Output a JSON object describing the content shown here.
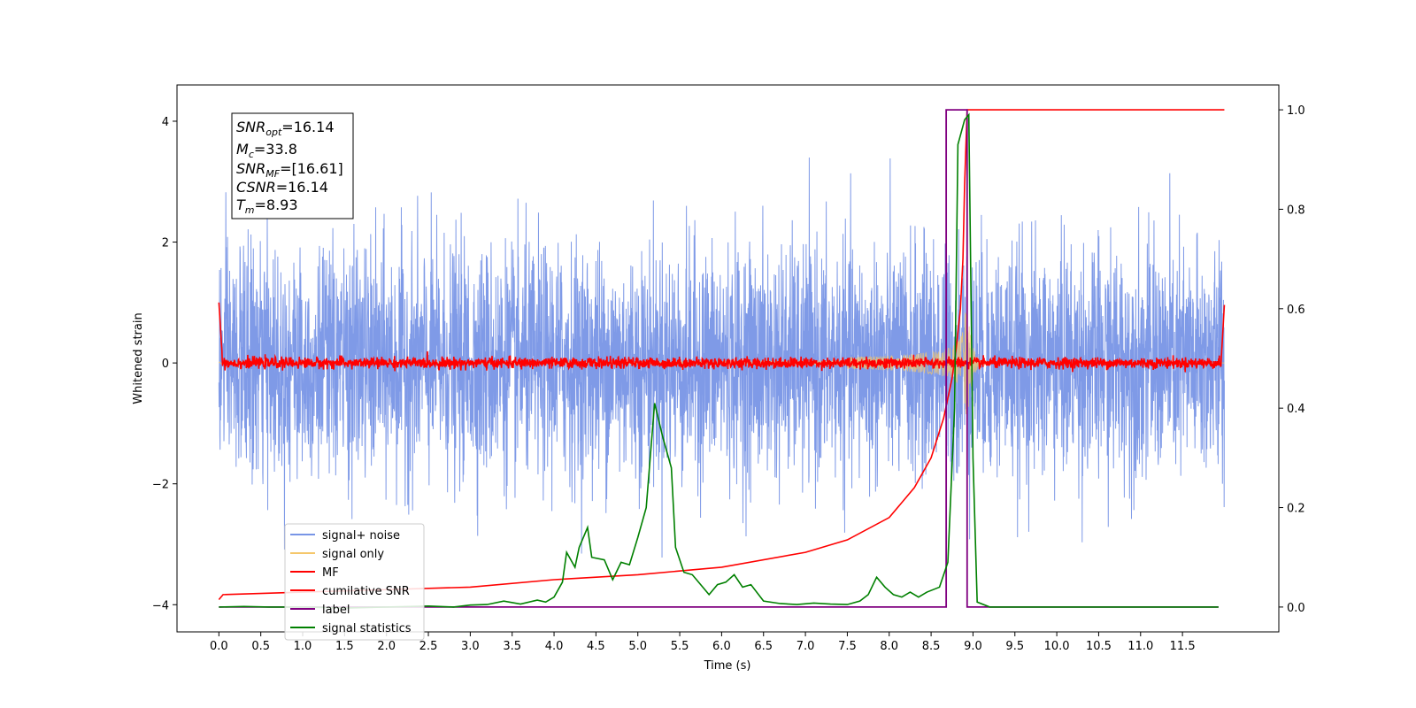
{
  "chart_data": {
    "type": "line",
    "xlabel": "Time (s)",
    "ylabel": "Whitened strain",
    "xlim": [
      -0.5,
      12.65
    ],
    "ylim_left": [
      -4.45,
      4.6
    ],
    "ylim_right": [
      -0.05,
      1.05
    ],
    "x_ticks": [
      "0.0",
      "0.5",
      "1.0",
      "1.5",
      "2.0",
      "2.5",
      "3.0",
      "3.5",
      "4.0",
      "4.5",
      "5.0",
      "5.5",
      "6.0",
      "6.5",
      "7.0",
      "7.5",
      "8.0",
      "8.5",
      "9.0",
      "9.5",
      "10.0",
      "10.5",
      "11.0",
      "11.5"
    ],
    "y_ticks_left": [
      "4",
      "2",
      "0",
      "−2",
      "−4"
    ],
    "y_ticks_right": [
      "1.0",
      "0.8",
      "0.6",
      "0.4",
      "0.2",
      "0.0"
    ],
    "info_box": {
      "snr_opt": {
        "base": "SNR",
        "sub": "opt",
        "value": "=16.14"
      },
      "mc": {
        "base": "M",
        "sub": "c",
        "value": "=33.8"
      },
      "snr_mf": {
        "base": "SNR",
        "sub": "MF",
        "value": "=[16.61]"
      },
      "csnr": {
        "base": "CSNR",
        "value": "=16.14"
      },
      "tm": {
        "base": "T",
        "sub": "m",
        "value": "=8.93"
      }
    },
    "series": [
      {
        "name": "signal+ noise",
        "axis": "left",
        "color": "#7895e6",
        "description": "white noise, std ~1, spikes to ~3.8",
        "x_range": [
          0,
          12
        ]
      },
      {
        "name": "signal only",
        "axis": "left",
        "color": "#f5c76b",
        "description": "chirp growing to ~1 at t=8.93",
        "x_range": [
          0,
          12
        ]
      },
      {
        "name": "MF",
        "axis": "left",
        "color": "#ff0000",
        "description": "matched filter output ~0 +/- 0.1, ~1 at edges",
        "x_range": [
          0,
          12
        ]
      },
      {
        "name": "cumilative SNR",
        "axis": "right",
        "color": "#ff0000",
        "points": [
          [
            0.0,
            0.015
          ],
          [
            0.05,
            0.025
          ],
          [
            1,
            0.03
          ],
          [
            2,
            0.035
          ],
          [
            3,
            0.04
          ],
          [
            4,
            0.055
          ],
          [
            5,
            0.065
          ],
          [
            6,
            0.08
          ],
          [
            7,
            0.11
          ],
          [
            7.5,
            0.135
          ],
          [
            8.0,
            0.18
          ],
          [
            8.3,
            0.24
          ],
          [
            8.5,
            0.3
          ],
          [
            8.65,
            0.38
          ],
          [
            8.75,
            0.46
          ],
          [
            8.8,
            0.52
          ],
          [
            8.85,
            0.6
          ],
          [
            8.88,
            0.7
          ],
          [
            8.9,
            0.85
          ],
          [
            8.93,
            1.0
          ],
          [
            12,
            1.0
          ]
        ]
      },
      {
        "name": "label",
        "axis": "right",
        "color": "#800080",
        "points": [
          [
            0.0,
            0.0
          ],
          [
            8.68,
            0.0
          ],
          [
            8.68,
            1.0
          ],
          [
            8.93,
            1.0
          ],
          [
            8.93,
            0.0
          ],
          [
            11.93,
            0.0
          ]
        ]
      },
      {
        "name": "signal statistics",
        "axis": "right",
        "color": "#008000",
        "points": [
          [
            0.0,
            0.0
          ],
          [
            0.3,
            0.001
          ],
          [
            0.6,
            0.0
          ],
          [
            1.0,
            0.0
          ],
          [
            1.5,
            -0.002
          ],
          [
            2.0,
            0.0
          ],
          [
            2.5,
            0.002
          ],
          [
            2.8,
            0.0
          ],
          [
            3.0,
            0.004
          ],
          [
            3.2,
            0.005
          ],
          [
            3.4,
            0.012
          ],
          [
            3.6,
            0.006
          ],
          [
            3.8,
            0.014
          ],
          [
            3.9,
            0.01
          ],
          [
            4.0,
            0.02
          ],
          [
            4.1,
            0.05
          ],
          [
            4.15,
            0.11
          ],
          [
            4.25,
            0.08
          ],
          [
            4.3,
            0.12
          ],
          [
            4.4,
            0.16
          ],
          [
            4.45,
            0.1
          ],
          [
            4.6,
            0.095
          ],
          [
            4.7,
            0.055
          ],
          [
            4.8,
            0.09
          ],
          [
            4.9,
            0.085
          ],
          [
            5.0,
            0.14
          ],
          [
            5.1,
            0.2
          ],
          [
            5.2,
            0.41
          ],
          [
            5.3,
            0.34
          ],
          [
            5.4,
            0.28
          ],
          [
            5.45,
            0.12
          ],
          [
            5.55,
            0.07
          ],
          [
            5.65,
            0.065
          ],
          [
            5.75,
            0.045
          ],
          [
            5.85,
            0.025
          ],
          [
            5.95,
            0.045
          ],
          [
            6.05,
            0.05
          ],
          [
            6.15,
            0.065
          ],
          [
            6.25,
            0.04
          ],
          [
            6.35,
            0.045
          ],
          [
            6.5,
            0.012
          ],
          [
            6.7,
            0.007
          ],
          [
            6.9,
            0.005
          ],
          [
            7.1,
            0.008
          ],
          [
            7.3,
            0.006
          ],
          [
            7.5,
            0.005
          ],
          [
            7.65,
            0.012
          ],
          [
            7.75,
            0.025
          ],
          [
            7.85,
            0.06
          ],
          [
            7.95,
            0.04
          ],
          [
            8.05,
            0.025
          ],
          [
            8.15,
            0.02
          ],
          [
            8.25,
            0.03
          ],
          [
            8.35,
            0.02
          ],
          [
            8.45,
            0.03
          ],
          [
            8.6,
            0.04
          ],
          [
            8.7,
            0.09
          ],
          [
            8.78,
            0.4
          ],
          [
            8.82,
            0.93
          ],
          [
            8.9,
            0.98
          ],
          [
            8.95,
            0.99
          ],
          [
            9.0,
            0.3
          ],
          [
            9.05,
            0.01
          ],
          [
            9.2,
            0.0
          ],
          [
            11.93,
            0.0
          ]
        ]
      }
    ],
    "legend": {
      "placement": "lower-left",
      "entries": [
        "signal+ noise",
        "signal only",
        "MF",
        "cumilative SNR",
        "label",
        "signal statistics"
      ]
    },
    "grid": false
  }
}
